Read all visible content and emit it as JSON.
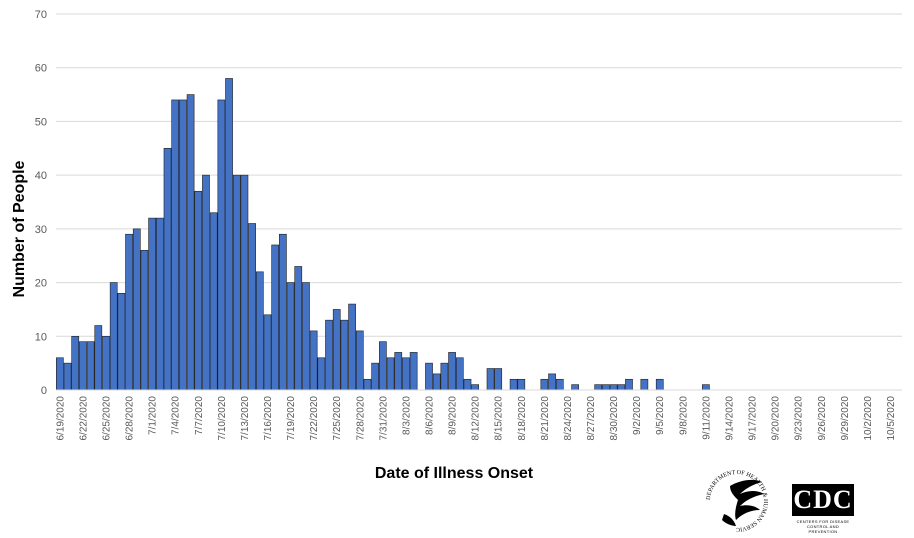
{
  "chart_data": {
    "type": "bar",
    "title": "",
    "xlabel": "Date of Illness Onset",
    "ylabel": "Number of People",
    "ylim": [
      0,
      70
    ],
    "y_ticks": [
      0,
      10,
      20,
      30,
      40,
      50,
      60,
      70
    ],
    "grid": true,
    "legend": "none",
    "bar_color": "#4472c4",
    "bar_edge_color": "#1f1f1f",
    "grid_color": "#d9d9d9",
    "start_date": "2020-06-19",
    "tick_labels": [
      "6/19/2020",
      "6/22/2020",
      "6/25/2020",
      "6/28/2020",
      "7/1/2020",
      "7/4/2020",
      "7/7/2020",
      "7/10/2020",
      "7/13/2020",
      "7/16/2020",
      "7/19/2020",
      "7/22/2020",
      "7/25/2020",
      "7/28/2020",
      "7/31/2020",
      "8/3/2020",
      "8/6/2020",
      "8/9/2020",
      "8/12/2020",
      "8/15/2020",
      "8/18/2020",
      "8/21/2020",
      "8/24/2020",
      "8/27/2020",
      "8/30/2020",
      "9/2/2020",
      "9/5/2020",
      "9/8/2020",
      "9/11/2020",
      "9/14/2020",
      "9/17/2020",
      "9/20/2020",
      "9/23/2020",
      "9/26/2020",
      "9/29/2020",
      "10/2/2020",
      "10/5/2020"
    ],
    "values": [
      6,
      5,
      10,
      9,
      9,
      12,
      10,
      20,
      18,
      29,
      30,
      26,
      32,
      32,
      45,
      54,
      54,
      55,
      37,
      40,
      33,
      54,
      58,
      40,
      40,
      31,
      22,
      14,
      27,
      29,
      20,
      23,
      20,
      11,
      6,
      13,
      15,
      13,
      16,
      11,
      2,
      5,
      9,
      6,
      7,
      6,
      7,
      0,
      5,
      3,
      5,
      7,
      6,
      2,
      1,
      0,
      4,
      4,
      0,
      2,
      2,
      0,
      0,
      2,
      3,
      2,
      0,
      1,
      0,
      0,
      1,
      1,
      1,
      1,
      2,
      0,
      2,
      0,
      2,
      0,
      0,
      0,
      0,
      0,
      1,
      0,
      0,
      0,
      0,
      0,
      0,
      0,
      0,
      0,
      0,
      0,
      0,
      0,
      0,
      0,
      0,
      0,
      0,
      0,
      0,
      0,
      0,
      0,
      0,
      0
    ]
  },
  "logos": {
    "hhs": "DEPARTMENT OF HEALTH & HUMAN SERVICES USA",
    "cdc_mark": "CDC",
    "cdc_text": "CENTERS FOR DISEASE CONTROL AND PREVENTION"
  }
}
